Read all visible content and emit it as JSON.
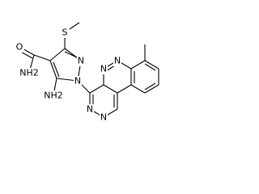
{
  "atoms": [
    {
      "label": "S"
    },
    {
      "label": "O"
    },
    {
      "label": "NH2"
    },
    {
      "label": "NH2"
    },
    {
      "label": "N"
    },
    {
      "label": "N"
    },
    {
      "label": "N"
    },
    {
      "label": "N"
    },
    {
      "label": "N"
    },
    {
      "label": "N"
    }
  ]
}
